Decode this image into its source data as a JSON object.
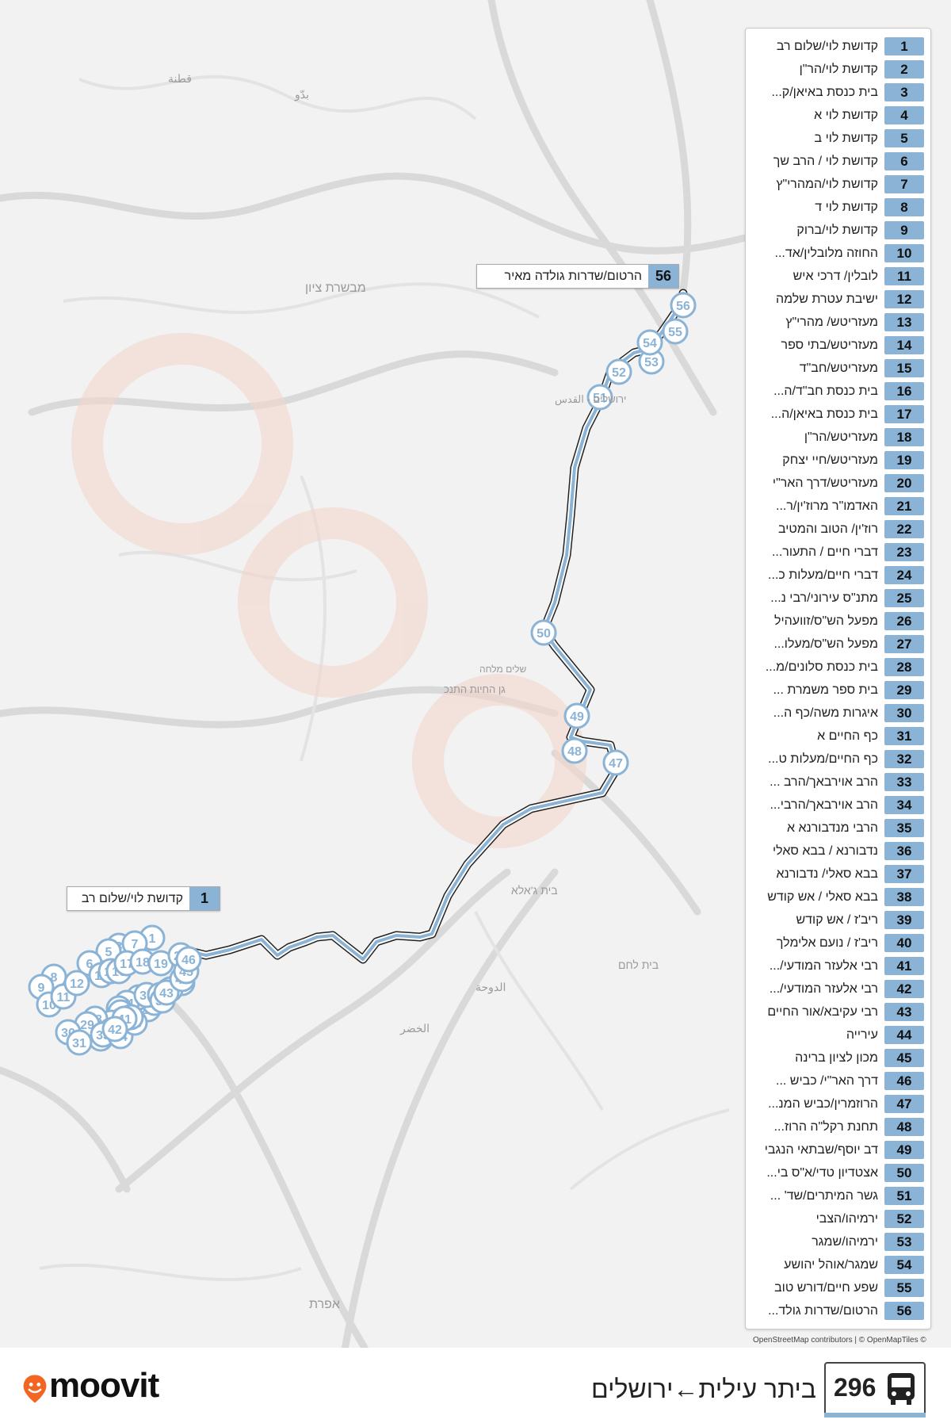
{
  "route": {
    "number": "296",
    "title": "ביתר עילית←ירושלים"
  },
  "brand": {
    "name": "moovit",
    "logo_color": "#f26522"
  },
  "colors": {
    "route_line": "#8ab3d6",
    "route_outline": "#222222",
    "stop_badge": "#8ab3d6",
    "map_bg": "#f2f2f2",
    "roads": "#d7d7d7"
  },
  "attribution": "OpenStreetMap contributors | © OpenMapTiles ©",
  "map_labels": [
    "قطنة",
    "بدّو",
    "מבשרת ציון",
    "ירושלים - القدس",
    "גן החיות התנכ",
    "בית ג'אלא",
    "בית לחם",
    "الدوحة",
    "الخضر",
    "אפרת",
    "שלים מלחה"
  ],
  "callouts": {
    "start": {
      "num": "1",
      "name": "קדושת לוי/שלום רב"
    },
    "end": {
      "num": "56",
      "name": "הרטום/שדרות גולדה מאיר"
    }
  },
  "stops": [
    {
      "num": "1",
      "name": "קדושת לוי/שלום רב"
    },
    {
      "num": "2",
      "name": "קדושת לוי/הר\"ן"
    },
    {
      "num": "3",
      "name": "בית כנסת באיאן/ק..."
    },
    {
      "num": "4",
      "name": "קדושת לוי א"
    },
    {
      "num": "5",
      "name": "קדושת לוי ב"
    },
    {
      "num": "6",
      "name": "קדושת לוי / הרב שך"
    },
    {
      "num": "7",
      "name": "קדושת לוי/המהרי\"ץ"
    },
    {
      "num": "8",
      "name": "קדושת לוי ד"
    },
    {
      "num": "9",
      "name": "קדושת לוי/ברוק"
    },
    {
      "num": "10",
      "name": "החוזה מלובלין/אד..."
    },
    {
      "num": "11",
      "name": "לובלין/ דרכי איש"
    },
    {
      "num": "12",
      "name": "ישיבת עטרת שלמה"
    },
    {
      "num": "13",
      "name": "מעזריטש/ מהרי\"ץ"
    },
    {
      "num": "14",
      "name": "מעזריטש/בתי ספר"
    },
    {
      "num": "15",
      "name": "מעזריטש/חב\"ד"
    },
    {
      "num": "16",
      "name": "בית כנסת חב\"ד/ה..."
    },
    {
      "num": "17",
      "name": "בית כנסת באיאן/ה..."
    },
    {
      "num": "18",
      "name": "מעזריטש/הר\"ן"
    },
    {
      "num": "19",
      "name": "מעזריטש/חיי יצחק"
    },
    {
      "num": "20",
      "name": "מעזריטש/דרך האר\"י"
    },
    {
      "num": "21",
      "name": "האדמו\"ר מרוז'ין/ר..."
    },
    {
      "num": "22",
      "name": "רוז'ין/ הטוב והמטיב"
    },
    {
      "num": "23",
      "name": "דברי חיים / התעור..."
    },
    {
      "num": "24",
      "name": "דברי חיים/מעלות כ..."
    },
    {
      "num": "25",
      "name": "מתנ\"ס עירוני/רבי נ..."
    },
    {
      "num": "26",
      "name": "מפעל הש\"ס/זוועהיל"
    },
    {
      "num": "27",
      "name": "מפעל הש\"ס/מעלו..."
    },
    {
      "num": "28",
      "name": "בית כנסת סלונים/מ..."
    },
    {
      "num": "29",
      "name": "בית ספר משמרת ..."
    },
    {
      "num": "30",
      "name": "איגרות משה/כף ה..."
    },
    {
      "num": "31",
      "name": "כף החיים א"
    },
    {
      "num": "32",
      "name": "כף החיים/מעלות ט..."
    },
    {
      "num": "33",
      "name": "הרב אוירבאך/הרב ..."
    },
    {
      "num": "34",
      "name": "הרב אוירבאך/הרבי..."
    },
    {
      "num": "35",
      "name": "הרבי מנדבורנא א"
    },
    {
      "num": "36",
      "name": "נדבורנא / בבא סאלי"
    },
    {
      "num": "37",
      "name": "בבא סאלי/ נדבורנא"
    },
    {
      "num": "38",
      "name": "בבא סאלי / אש קודש"
    },
    {
      "num": "39",
      "name": "ריב'ז / אש קודש"
    },
    {
      "num": "40",
      "name": "ריב'ז / נועם אלימלך"
    },
    {
      "num": "41",
      "name": "רבי אלעזר המודעי/..."
    },
    {
      "num": "42",
      "name": "רבי אלעזר המודעי/..."
    },
    {
      "num": "43",
      "name": "רבי עקיבא/אור החיים"
    },
    {
      "num": "44",
      "name": "עירייה"
    },
    {
      "num": "45",
      "name": "מכון לציון ברינה"
    },
    {
      "num": "46",
      "name": "דרך האר\"י/ כביש ..."
    },
    {
      "num": "47",
      "name": "הרוזמרין/כביש המנ..."
    },
    {
      "num": "48",
      "name": "תחנת רקל\"ה הרוז..."
    },
    {
      "num": "49",
      "name": "דב יוסף/שבתאי הנגבי"
    },
    {
      "num": "50",
      "name": "אצטדיון טדי/א\"ס בי..."
    },
    {
      "num": "51",
      "name": "גשר המיתרים/שד' ..."
    },
    {
      "num": "52",
      "name": "ירמיהו/הצבי"
    },
    {
      "num": "53",
      "name": "ירמיהו/שמגר"
    },
    {
      "num": "54",
      "name": "שמגר/אוהל יהושע"
    },
    {
      "num": "55",
      "name": "שפע חיים/דורש טוב"
    },
    {
      "num": "56",
      "name": "הרטום/שדרות גולד..."
    }
  ],
  "map_markers": [
    "1",
    "2",
    "3",
    "4",
    "5",
    "6",
    "7",
    "8",
    "9",
    "10",
    "11",
    "12",
    "13",
    "14",
    "15",
    "16",
    "17",
    "18",
    "19",
    "20",
    "21",
    "22",
    "23",
    "24",
    "25",
    "26",
    "27",
    "28",
    "29",
    "30",
    "31",
    "32",
    "33",
    "34",
    "35",
    "36",
    "37",
    "38",
    "39",
    "40",
    "41",
    "42",
    "43",
    "44",
    "45",
    "46",
    "47",
    "48",
    "49",
    "50",
    "51",
    "52",
    "53",
    "54",
    "55",
    "56"
  ]
}
